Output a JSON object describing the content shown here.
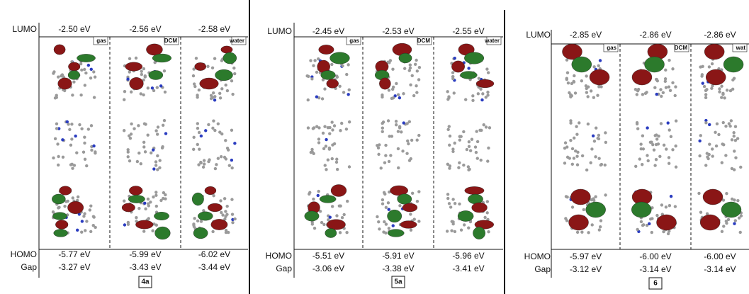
{
  "panels": [
    {
      "row_labels": {
        "lumo": "LUMO",
        "homo": "HOMO",
        "gap": "Gap"
      },
      "lumo": [
        "-2.50 eV",
        "-2.56 eV",
        "-2.58 eV"
      ],
      "homo": [
        "-5.77 eV",
        "-5.99 eV",
        "-6.02 eV"
      ],
      "gap": [
        "-3.27 eV",
        "-3.43 eV",
        "-3.44 eV"
      ],
      "solvents": [
        "gas",
        "DCM",
        "water"
      ],
      "compound": "4a"
    },
    {
      "row_labels": {
        "lumo": "LUMO",
        "homo": "HOMO",
        "gap": "Gap"
      },
      "lumo": [
        "-2.45 eV",
        "-2.53 eV",
        "-2.55 eV"
      ],
      "homo": [
        "-5.51 eV",
        "-5.91 eV",
        "-5.96 eV"
      ],
      "gap": [
        "-3.06 eV",
        "-3.38 eV",
        "-3.41 eV"
      ],
      "solvents": [
        "gas",
        "DCM",
        "water"
      ],
      "compound": "5a"
    },
    {
      "row_labels": {
        "lumo": "LUMO",
        "homo": "HOMO",
        "gap": "Gap"
      },
      "lumo": [
        "-2.85 eV",
        "-2.86 eV",
        "-2.86 eV"
      ],
      "homo": [
        "-5.97 eV",
        "-6.00 eV",
        "-6.00 eV"
      ],
      "gap": [
        "-3.12 eV",
        "-3.14 eV",
        "-3.14 eV"
      ],
      "solvents": [
        "gas",
        "DCM",
        "wat"
      ],
      "compound": "6"
    }
  ]
}
